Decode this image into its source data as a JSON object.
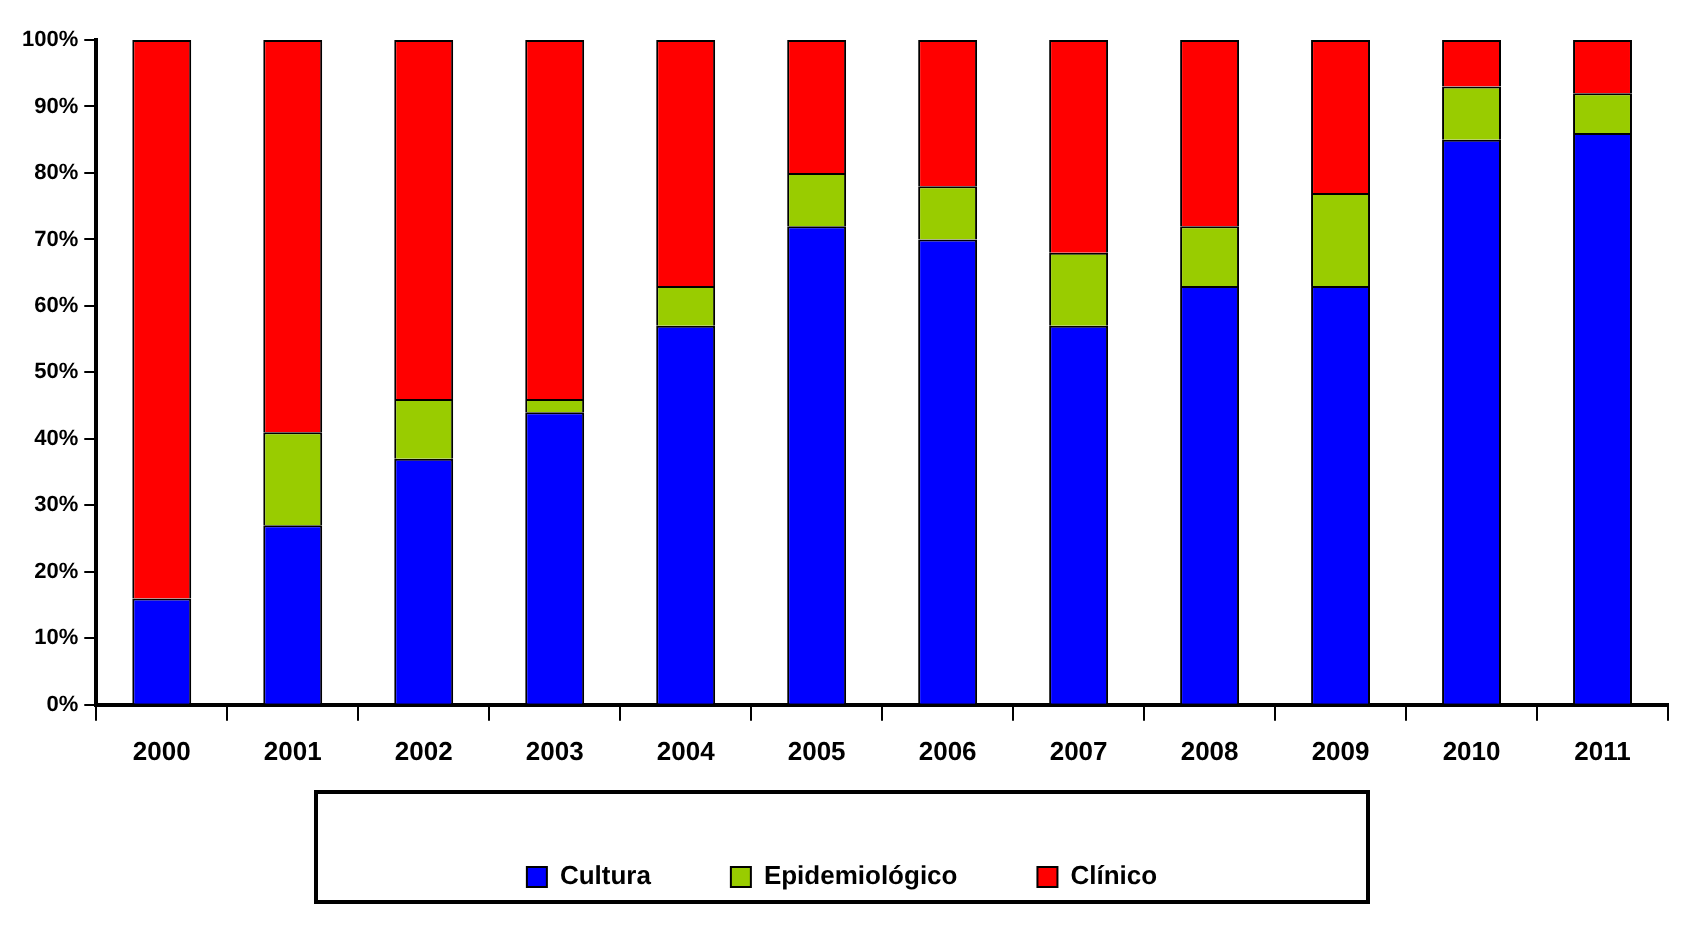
{
  "chart_data": {
    "type": "bar",
    "stacked": true,
    "categories": [
      "2000",
      "2001",
      "2002",
      "2003",
      "2004",
      "2005",
      "2006",
      "2007",
      "2008",
      "2009",
      "2010",
      "2011"
    ],
    "series": [
      {
        "name": "Cultura",
        "color": "#0000ff",
        "values": [
          16,
          27,
          37,
          44,
          57,
          72,
          70,
          57,
          63,
          63,
          85,
          86
        ]
      },
      {
        "name": "Epidemiológico",
        "color": "#99cc00",
        "values": [
          0,
          14,
          9,
          2,
          6,
          8,
          8,
          11,
          9,
          14,
          8,
          6
        ]
      },
      {
        "name": "Clínico",
        "color": "#ff0000",
        "values": [
          84,
          59,
          54,
          54,
          37,
          20,
          22,
          32,
          28,
          23,
          7,
          8
        ]
      }
    ],
    "ylim": [
      0,
      100
    ],
    "yticks": [
      {
        "value": 0,
        "label": "0%"
      },
      {
        "value": 10,
        "label": "10%"
      },
      {
        "value": 20,
        "label": "20%"
      },
      {
        "value": 30,
        "label": "30%"
      },
      {
        "value": 40,
        "label": "40%"
      },
      {
        "value": 50,
        "label": "50%"
      },
      {
        "value": 60,
        "label": "60%"
      },
      {
        "value": 70,
        "label": "70%"
      },
      {
        "value": 80,
        "label": "80%"
      },
      {
        "value": 90,
        "label": "90%"
      },
      {
        "value": 100,
        "label": "100%"
      }
    ],
    "legend": "bottom",
    "grid": false
  }
}
